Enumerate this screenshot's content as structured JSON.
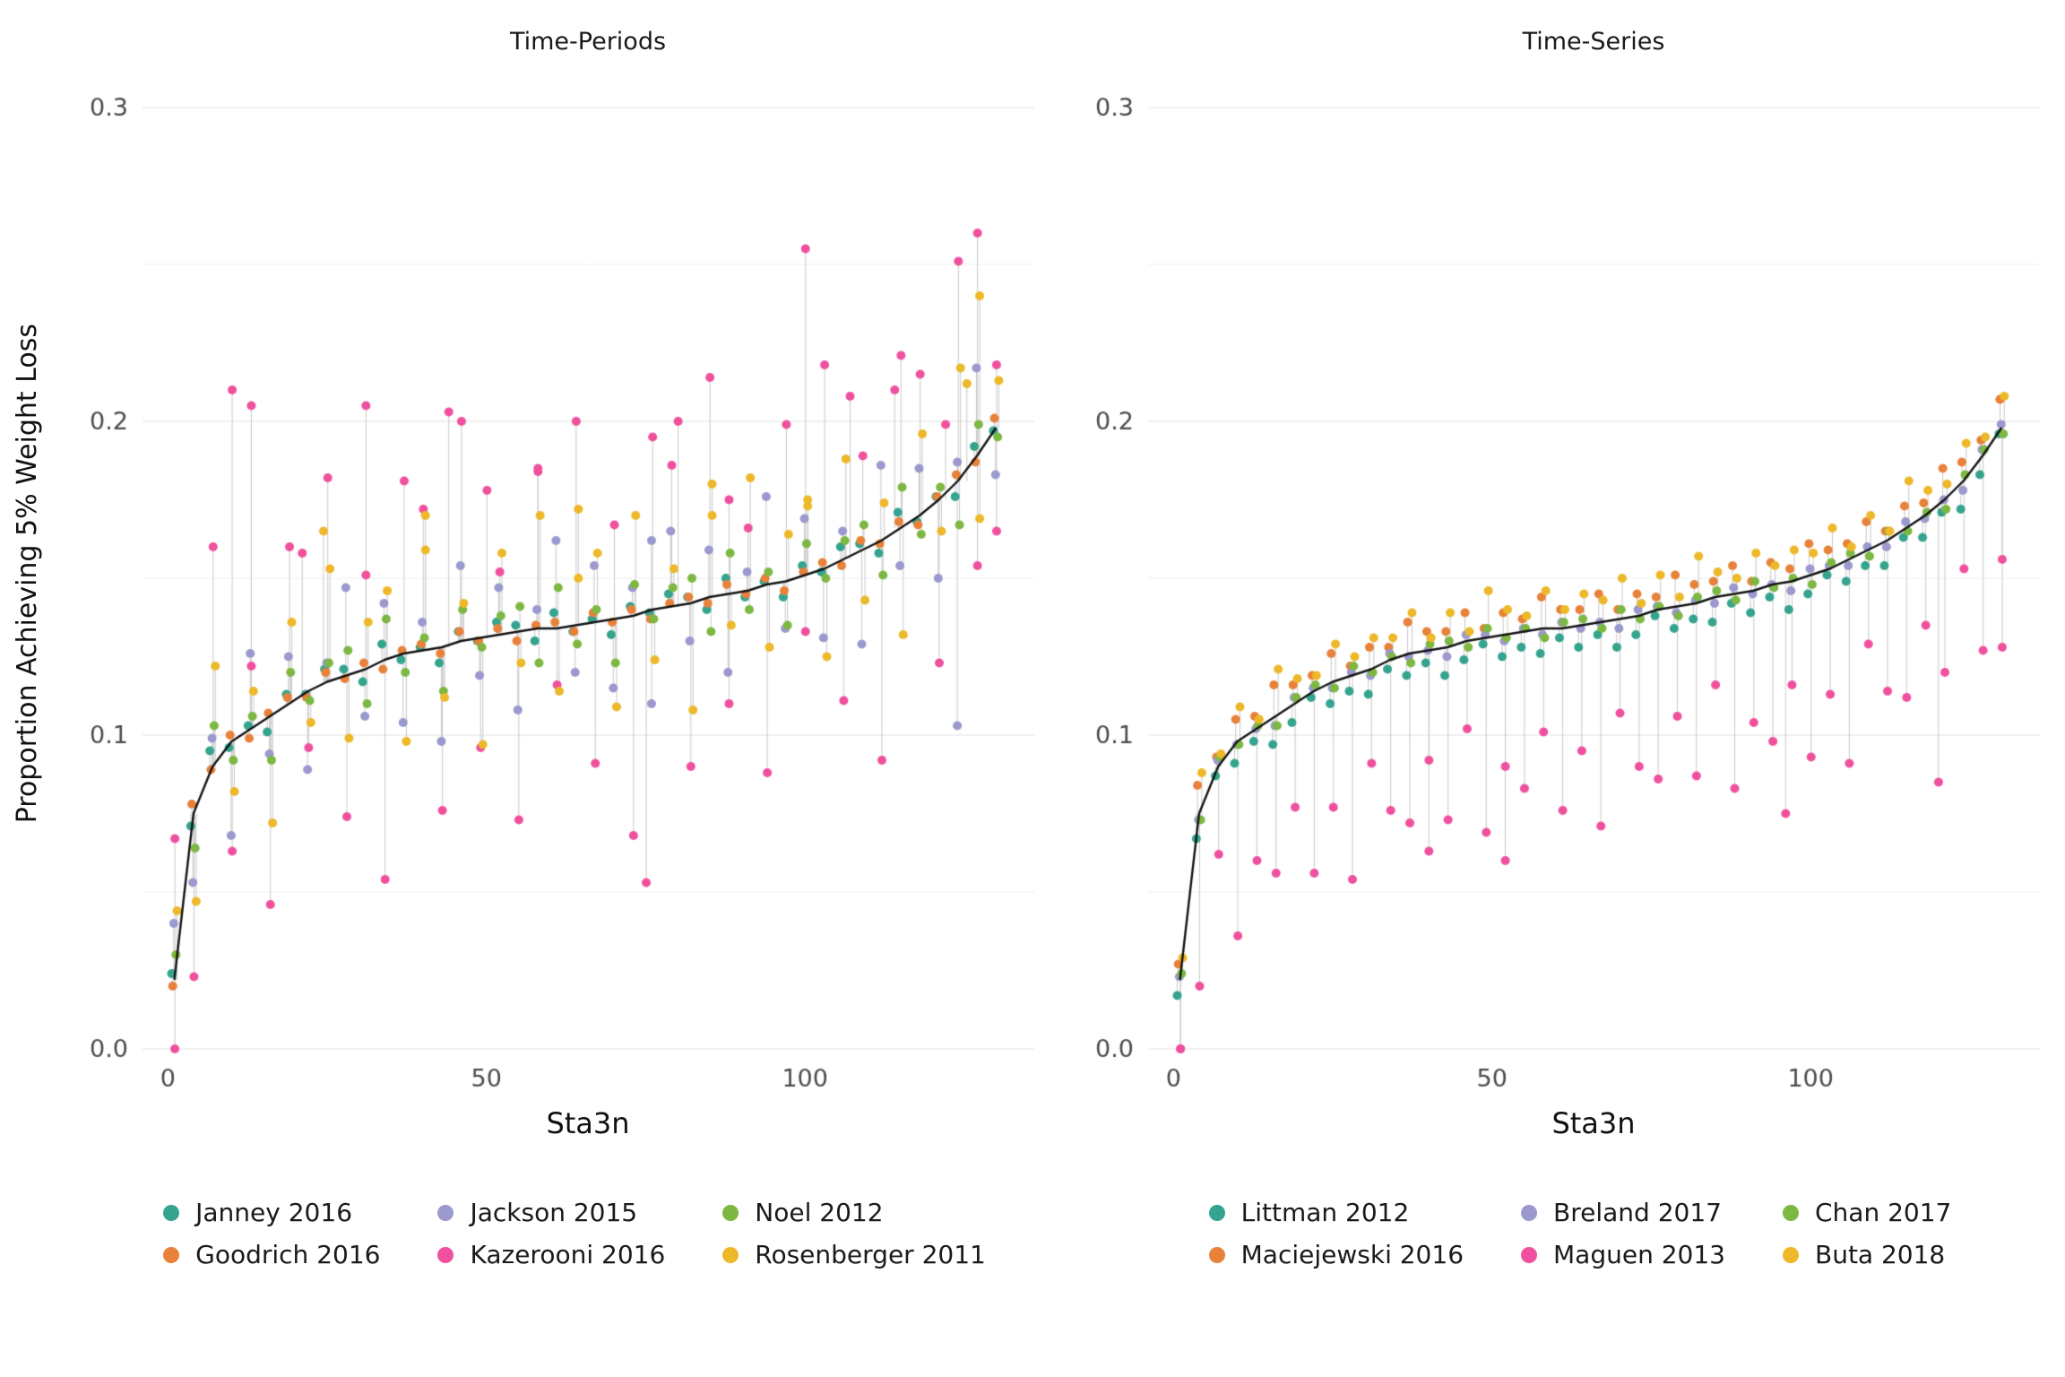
{
  "chart_data": {
    "type": "scatter",
    "title": "",
    "xlabel": "Sta3n",
    "ylabel": "Proportion Achieving 5% Weight Loss",
    "x_range": [
      -4,
      136
    ],
    "y_range": [
      0,
      0.3
    ],
    "x_ticks": [
      0,
      50,
      100
    ],
    "x_tick_labels": [
      "0",
      "50",
      "100"
    ],
    "y_ticks": [
      0.0,
      0.1,
      0.2,
      0.3
    ],
    "y_tick_labels": [
      "0.0",
      "0.1",
      "0.2",
      "0.3"
    ],
    "y_minor_ticks": [
      0.05,
      0.15,
      0.25
    ],
    "grid": "horizontal-only",
    "legend_position": "bottom",
    "style": {
      "grid_major": "#e2e2e2",
      "grid_minor": "#f0f0f0",
      "stem": "#c9c9c9",
      "median_line": "#141414",
      "tick_text": "#4d4d4d",
      "point_radius": 5
    },
    "x": [
      1,
      4,
      7,
      10,
      13,
      16,
      19,
      22,
      25,
      28,
      31,
      34,
      37,
      40,
      43,
      46,
      49,
      52,
      55,
      58,
      61,
      64,
      67,
      70,
      73,
      76,
      79,
      82,
      85,
      88,
      91,
      94,
      97,
      100,
      103,
      106,
      109,
      112,
      115,
      118,
      121,
      124,
      127,
      130
    ],
    "median": [
      0.022,
      0.075,
      0.09,
      0.098,
      0.102,
      0.106,
      0.11,
      0.114,
      0.117,
      0.119,
      0.121,
      0.124,
      0.126,
      0.127,
      0.128,
      0.13,
      0.131,
      0.132,
      0.133,
      0.134,
      0.134,
      0.135,
      0.136,
      0.137,
      0.138,
      0.14,
      0.141,
      0.142,
      0.144,
      0.145,
      0.146,
      0.148,
      0.149,
      0.151,
      0.153,
      0.156,
      0.159,
      0.162,
      0.166,
      0.17,
      0.175,
      0.181,
      0.189,
      0.198
    ],
    "panels": [
      {
        "title": "Time-Periods",
        "series": [
          {
            "name": "Janney 2016",
            "color": "#35A48E",
            "offsets": [
              0.002,
              -0.004,
              0.005,
              -0.002,
              0.001,
              -0.005,
              0.003,
              -0.001,
              0.004
            ],
            "outliers": []
          },
          {
            "name": "Goodrich 2016",
            "color": "#E8823A",
            "offsets": [
              -0.002,
              0.003,
              -0.001,
              0.002,
              -0.003,
              0.001,
              0.002
            ],
            "outliers": []
          },
          {
            "name": "Jackson 2015",
            "color": "#9B99CE",
            "offsets": [
              0.018,
              -0.022,
              0.009,
              -0.03,
              0.024,
              -0.012,
              0.015,
              -0.025,
              0.006,
              0.028,
              -0.015
            ],
            "outliers": [
              [
                76,
                0.162
              ],
              [
                124,
                0.103
              ]
            ]
          },
          {
            "name": "Kazerooni 2016",
            "color": "#F0519E",
            "offsets": [
              0.045,
              -0.052,
              0.07,
              -0.035,
              0.02,
              -0.06,
              0.05,
              -0.018,
              0.065,
              -0.045,
              0.03,
              -0.07,
              0.055
            ],
            "outliers": [
              [
                1,
                0.0
              ],
              [
                10,
                0.21
              ],
              [
                13,
                0.205
              ],
              [
                21,
                0.158
              ],
              [
                31,
                0.205
              ],
              [
                44,
                0.203
              ],
              [
                50,
                0.178
              ],
              [
                58,
                0.185
              ],
              [
                75,
                0.053
              ],
              [
                80,
                0.2
              ],
              [
                88,
                0.175
              ],
              [
                100,
                0.255
              ],
              [
                107,
                0.208
              ],
              [
                114,
                0.21
              ],
              [
                122,
                0.199
              ],
              [
                127,
                0.26
              ],
              [
                130,
                0.165
              ]
            ]
          },
          {
            "name": "Noel 2012",
            "color": "#7DB843",
            "offsets": [
              0.008,
              -0.011,
              0.013,
              -0.006,
              0.004,
              -0.014,
              0.01,
              -0.003,
              0.006
            ],
            "outliers": []
          },
          {
            "name": "Rosenberger 2011",
            "color": "#EDB829",
            "offsets": [
              0.022,
              -0.028,
              0.032,
              -0.016,
              0.012,
              -0.034,
              0.026,
              -0.01,
              0.036,
              -0.02,
              0.015
            ],
            "outliers": [
              [
                24,
                0.165
              ],
              [
                40,
                0.17
              ],
              [
                64,
                0.172
              ],
              [
                85,
                0.18
              ],
              [
                100,
                0.175
              ],
              [
                125,
                0.212
              ],
              [
                127,
                0.24
              ]
            ]
          }
        ]
      },
      {
        "title": "Time-Series",
        "series": [
          {
            "name": "Littman 2012",
            "color": "#35A48E",
            "offsets": [
              -0.005,
              -0.008,
              -0.003,
              -0.007,
              -0.004,
              -0.009,
              -0.006,
              -0.002,
              -0.007
            ],
            "outliers": []
          },
          {
            "name": "Maciejewski 2016",
            "color": "#E8823A",
            "offsets": [
              0.005,
              0.009,
              0.003,
              0.007,
              0.004,
              0.01,
              0.006
            ],
            "outliers": [
              [
                130,
                0.207
              ]
            ]
          },
          {
            "name": "Breland 2017",
            "color": "#9B99CE",
            "offsets": [
              0.001,
              -0.002,
              0.002,
              -0.001,
              0.0,
              -0.003,
              0.002,
              0.001,
              -0.002
            ],
            "outliers": []
          },
          {
            "name": "Maguen 2013",
            "color": "#F0519E",
            "offsets": [
              -0.035,
              -0.055,
              -0.028,
              -0.062,
              -0.042,
              -0.05,
              -0.033,
              -0.058,
              -0.04,
              -0.065,
              -0.03,
              -0.048,
              -0.054
            ],
            "outliers": [
              [
                1,
                0.0
              ],
              [
                40,
                0.063
              ],
              [
                52,
                0.06
              ],
              [
                96,
                0.075
              ],
              [
                120,
                0.085
              ],
              [
                130,
                0.128
              ]
            ]
          },
          {
            "name": "Chan 2017",
            "color": "#7DB843",
            "offsets": [
              0.002,
              -0.002,
              0.003,
              -0.001,
              0.001,
              -0.003,
              0.002
            ],
            "outliers": []
          },
          {
            "name": "Buta 2018",
            "color": "#EDB829",
            "offsets": [
              0.007,
              0.013,
              0.004,
              0.011,
              0.003,
              0.015,
              0.008,
              0.005,
              0.012,
              0.006,
              0.01
            ],
            "outliers": []
          }
        ]
      }
    ]
  }
}
